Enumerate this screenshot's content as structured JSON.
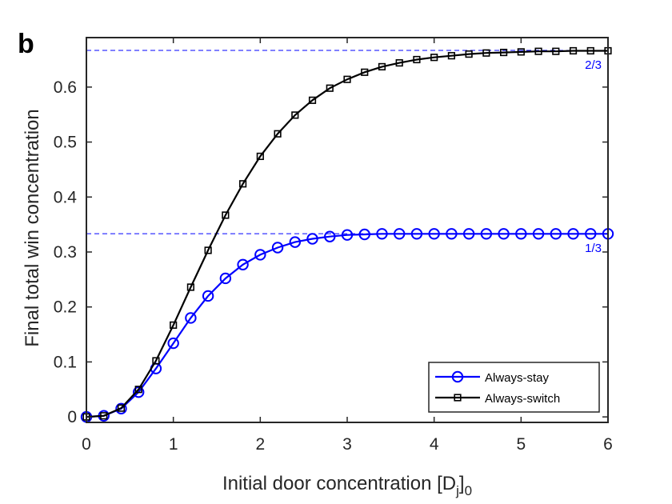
{
  "panel_label": "b",
  "chart_data": {
    "type": "line",
    "xlabel": "Initial door concentration [D",
    "xlabel_sub": "j",
    "xlabel_close": "]",
    "xlabel_sub2": "0",
    "ylabel": "Final total win concentration",
    "xlim": [
      0,
      6
    ],
    "ylim": [
      -0.01,
      0.69
    ],
    "xticks": [
      0,
      1,
      2,
      3,
      4,
      5,
      6
    ],
    "yticks": [
      0,
      0.1,
      0.2,
      0.3,
      0.4,
      0.5,
      0.6
    ],
    "xtick_labels": [
      "0",
      "1",
      "2",
      "3",
      "4",
      "5",
      "6"
    ],
    "ytick_labels": [
      "0",
      "0.1",
      "0.2",
      "0.3",
      "0.4",
      "0.5",
      "0.6"
    ],
    "grid": false,
    "legend_position": "bottom-right",
    "reference_lines": [
      {
        "y": 0.6667,
        "label": "2/3",
        "color": "#0000ff"
      },
      {
        "y": 0.3333,
        "label": "1/3",
        "color": "#0000ff"
      }
    ],
    "x": [
      0,
      0.2,
      0.4,
      0.6,
      0.8,
      1.0,
      1.2,
      1.4,
      1.6,
      1.8,
      2.0,
      2.2,
      2.4,
      2.6,
      2.8,
      3.0,
      3.2,
      3.4,
      3.6,
      3.8,
      4.0,
      4.2,
      4.4,
      4.6,
      4.8,
      5.0,
      5.2,
      5.4,
      5.6,
      5.8,
      6.0
    ],
    "series": [
      {
        "name": "Always-stay",
        "color": "#0000ff",
        "marker": "circle",
        "values": [
          0,
          0.002,
          0.015,
          0.045,
          0.088,
          0.134,
          0.18,
          0.22,
          0.252,
          0.277,
          0.295,
          0.308,
          0.318,
          0.324,
          0.328,
          0.331,
          0.332,
          0.333,
          0.333,
          0.333,
          0.333,
          0.333,
          0.333,
          0.333,
          0.333,
          0.333,
          0.333,
          0.333,
          0.333,
          0.333,
          0.333
        ]
      },
      {
        "name": "Always-switch",
        "color": "#000000",
        "marker": "square",
        "values": [
          0,
          0.002,
          0.016,
          0.05,
          0.102,
          0.167,
          0.236,
          0.303,
          0.367,
          0.424,
          0.474,
          0.515,
          0.549,
          0.576,
          0.598,
          0.614,
          0.627,
          0.637,
          0.644,
          0.65,
          0.654,
          0.657,
          0.66,
          0.662,
          0.663,
          0.664,
          0.665,
          0.665,
          0.666,
          0.666,
          0.666
        ]
      }
    ]
  }
}
